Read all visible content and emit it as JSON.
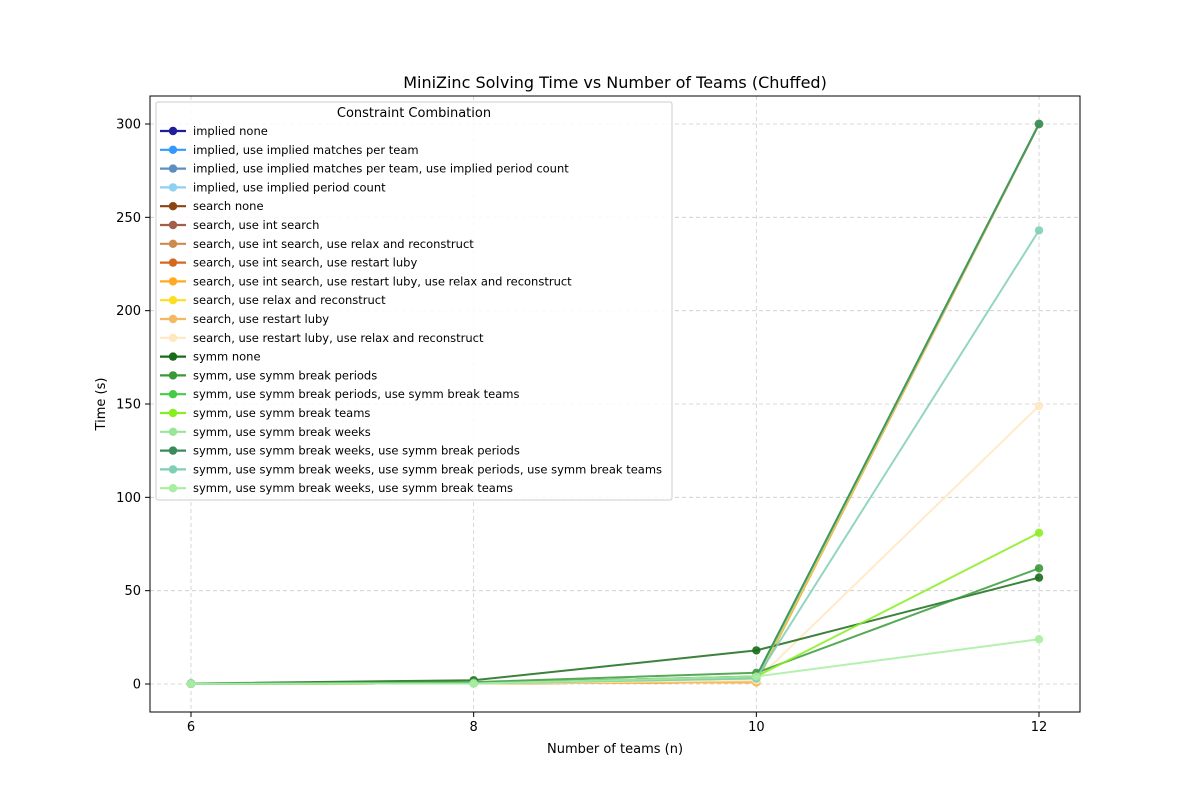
{
  "chart_data": {
    "type": "line",
    "title": "MiniZinc Solving Time vs Number of Teams (Chuffed)",
    "xlabel": "Number of teams (n)",
    "ylabel": "Time (s)",
    "x": [
      6,
      8,
      10,
      12
    ],
    "xticks": [
      6,
      8,
      10,
      12
    ],
    "yticks": [
      0,
      50,
      100,
      150,
      200,
      250,
      300
    ],
    "xlim": [
      5.71,
      12.29
    ],
    "ylim": [
      -15,
      315
    ],
    "grid": true,
    "legend": {
      "title": "Constraint Combination",
      "placement": "upper-left"
    },
    "series": [
      {
        "name": "implied none",
        "color": "#1f1f99",
        "values": [
          0.1,
          0.5,
          3,
          300
        ]
      },
      {
        "name": "implied, use implied matches per team",
        "color": "#3399ff",
        "values": [
          0.1,
          0.5,
          3,
          300
        ]
      },
      {
        "name": "implied, use implied matches per team, use implied period count",
        "color": "#5b8fbf",
        "values": [
          0.1,
          0.5,
          3,
          300
        ]
      },
      {
        "name": "implied, use implied period count",
        "color": "#8fcfef",
        "values": [
          0.1,
          0.5,
          3,
          300
        ]
      },
      {
        "name": "search none",
        "color": "#8b4513",
        "values": [
          0.1,
          0.3,
          1,
          300
        ]
      },
      {
        "name": "search, use int search",
        "color": "#a0604a",
        "values": [
          0.1,
          0.3,
          1,
          300
        ]
      },
      {
        "name": "search, use int search, use relax and reconstruct",
        "color": "#cd8b4f",
        "values": [
          0.1,
          0.3,
          1,
          300
        ]
      },
      {
        "name": "search, use int search, use restart luby",
        "color": "#d2691e",
        "values": [
          0.1,
          0.3,
          1,
          300
        ]
      },
      {
        "name": "search, use int search, use restart luby, use relax and reconstruct",
        "color": "#ffaa22",
        "values": [
          0.1,
          0.3,
          1,
          300
        ]
      },
      {
        "name": "search, use relax and reconstruct",
        "color": "#ffdd22",
        "values": [
          0.1,
          0.3,
          1,
          300
        ]
      },
      {
        "name": "search, use restart luby",
        "color": "#f4b860",
        "values": [
          0.1,
          0.3,
          1,
          300
        ]
      },
      {
        "name": "search, use restart luby, use relax and reconstruct",
        "color": "#ffe8c0",
        "values": [
          0.1,
          0.3,
          2,
          149
        ]
      },
      {
        "name": "symm none",
        "color": "#1a6b1a",
        "values": [
          0.3,
          2,
          18,
          57
        ]
      },
      {
        "name": "symm, use symm break periods",
        "color": "#3a9a3a",
        "values": [
          0.2,
          1,
          6,
          62
        ]
      },
      {
        "name": "symm, use symm break periods, use symm break teams",
        "color": "#44cc44",
        "values": [
          0.1,
          0.5,
          4,
          300
        ]
      },
      {
        "name": "symm, use symm break teams",
        "color": "#88ee22",
        "values": [
          0.1,
          0.5,
          4,
          81
        ]
      },
      {
        "name": "symm, use symm break weeks",
        "color": "#99e699",
        "values": [
          0.1,
          0.3,
          3,
          300
        ]
      },
      {
        "name": "symm, use symm break weeks, use symm break periods",
        "color": "#3a8a5a",
        "values": [
          0.1,
          0.5,
          4,
          300
        ]
      },
      {
        "name": "symm, use symm break weeks, use symm break periods, use symm break teams",
        "color": "#7fcfb5",
        "values": [
          0.1,
          0.3,
          3,
          243
        ]
      },
      {
        "name": "symm, use symm break weeks, use symm break teams",
        "color": "#a8eea0",
        "values": [
          0.1,
          0.3,
          4,
          24
        ]
      }
    ]
  }
}
